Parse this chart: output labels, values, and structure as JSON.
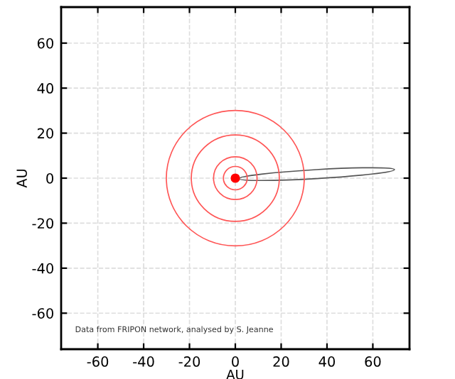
{
  "chart_data": {
    "type": "scatter",
    "xlabel": "AU",
    "ylabel": "AU",
    "xlim": [
      -76,
      76
    ],
    "ylim": [
      -76,
      76
    ],
    "xticks": [
      -60,
      -40,
      -20,
      0,
      20,
      40,
      60
    ],
    "yticks": [
      -60,
      -40,
      -20,
      0,
      20,
      40,
      60
    ],
    "grid": true,
    "marker": "circle",
    "annotations": [
      "Data from FRIPON network, analysed by S. Jeanne"
    ],
    "series": [
      {
        "color": "#ff0000",
        "x": [
          0
        ],
        "values": [
          0
        ]
      }
    ]
  }
}
